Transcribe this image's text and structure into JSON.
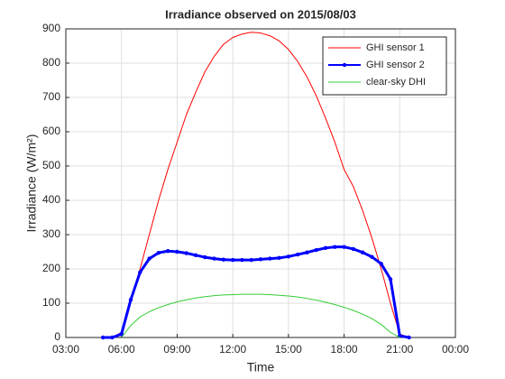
{
  "chart_data": {
    "type": "line",
    "title": "Irradiance observed on 2015/08/03",
    "x_label": "Time",
    "y_label": "Irradiance (W/m²)",
    "x": [
      5.0,
      5.5,
      6.0,
      6.5,
      7.0,
      7.5,
      8.0,
      8.5,
      9.0,
      9.5,
      10.0,
      10.5,
      11.0,
      11.5,
      12.0,
      12.5,
      13.0,
      13.5,
      14.0,
      14.5,
      15.0,
      15.5,
      16.0,
      16.5,
      17.0,
      17.5,
      18.0,
      18.5,
      19.0,
      19.5,
      20.0,
      20.5,
      21.0,
      21.5
    ],
    "series": [
      {
        "name": "GHI sensor 1",
        "color": "#ff0000",
        "marker": false,
        "values": [
          0,
          0,
          15,
          110,
          200,
          300,
          400,
          490,
          570,
          650,
          715,
          775,
          820,
          855,
          875,
          885,
          890,
          888,
          880,
          865,
          840,
          805,
          760,
          705,
          640,
          570,
          490,
          440,
          370,
          290,
          200,
          100,
          10,
          0
        ]
      },
      {
        "name": "GHI sensor 2",
        "color": "#0000ff",
        "marker": true,
        "values": [
          0,
          0,
          10,
          110,
          190,
          230,
          247,
          252,
          250,
          246,
          240,
          234,
          230,
          227,
          226,
          226,
          226,
          228,
          230,
          232,
          236,
          242,
          248,
          255,
          261,
          264,
          264,
          258,
          248,
          235,
          215,
          170,
          5,
          0
        ]
      },
      {
        "name": "clear-sky DHI",
        "color": "#33cc33",
        "marker": false,
        "values": [
          null,
          null,
          0,
          35,
          60,
          75,
          87,
          96,
          104,
          110,
          115,
          119,
          122,
          124,
          125,
          126,
          126,
          126,
          125,
          123,
          121,
          118,
          114,
          109,
          103,
          96,
          88,
          79,
          68,
          55,
          38,
          15,
          0,
          null
        ]
      }
    ],
    "xlim": [
      3,
      24
    ],
    "xticks": [
      {
        "value": 3,
        "label": "03:00"
      },
      {
        "value": 6,
        "label": "06:00"
      },
      {
        "value": 9,
        "label": "09:00"
      },
      {
        "value": 12,
        "label": "12:00"
      },
      {
        "value": 15,
        "label": "15:00"
      },
      {
        "value": 18,
        "label": "18:00"
      },
      {
        "value": 21,
        "label": "21:00"
      },
      {
        "value": 24,
        "label": "00:00"
      }
    ],
    "ylim": [
      0,
      900
    ],
    "yticks": [
      0,
      100,
      200,
      300,
      400,
      500,
      600,
      700,
      800,
      900
    ],
    "grid": true,
    "legend": "top-right"
  }
}
